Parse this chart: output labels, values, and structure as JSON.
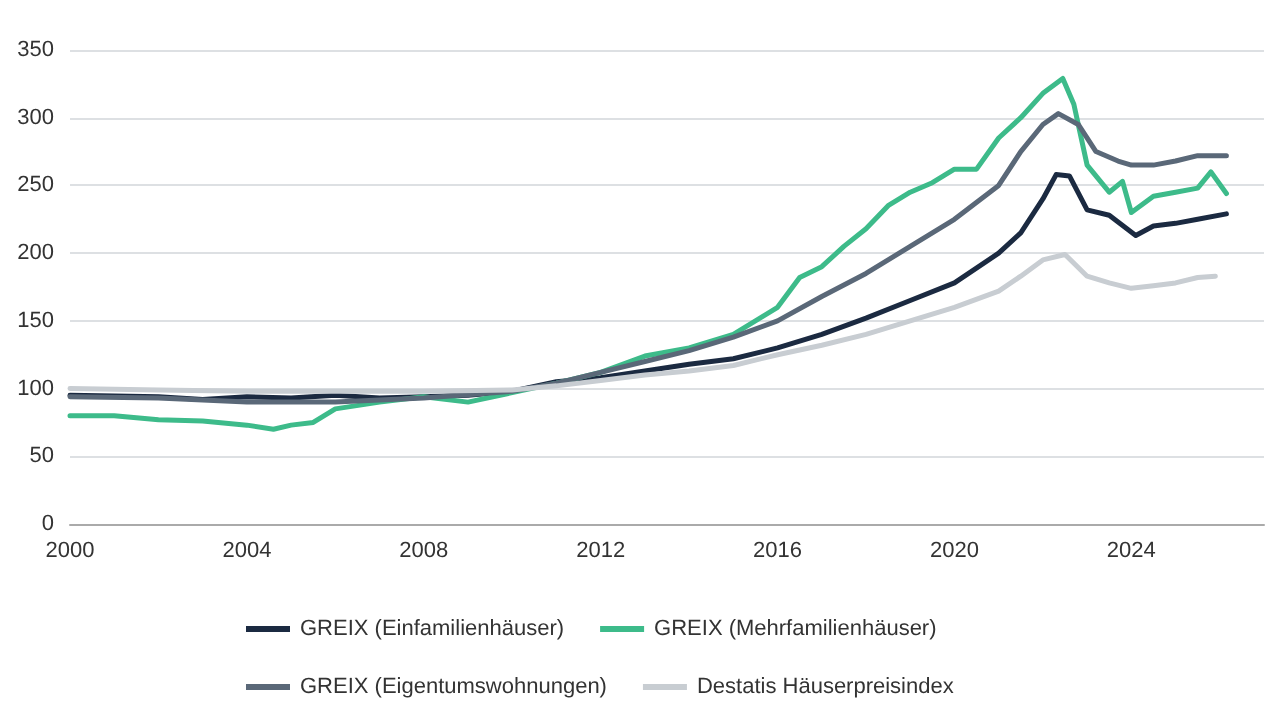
{
  "chart_data": {
    "type": "line",
    "xlim": [
      2000,
      2027
    ],
    "xticks": [
      2000,
      2004,
      2008,
      2012,
      2016,
      2020,
      2024
    ],
    "ylim": [
      0,
      350
    ],
    "yticks": [
      0,
      50,
      100,
      150,
      200,
      250,
      300,
      350
    ],
    "grid": "y",
    "legend": "bottom",
    "marker": "none",
    "line_style": "solid",
    "series": [
      {
        "name": "GREIX (Einfamilienhäuser)",
        "color": "#1b2a41",
        "x": [
          2000,
          2002,
          2003,
          2004,
          2005,
          2006,
          2007,
          2008,
          2009,
          2010,
          2011,
          2012,
          2013,
          2014,
          2015,
          2016,
          2017,
          2018,
          2019,
          2020,
          2021,
          2021.5,
          2022,
          2022.3,
          2022.6,
          2023,
          2023.5,
          2024.1,
          2024.5,
          2025,
          2025.5,
          2026.15
        ],
        "values": [
          95,
          94,
          92,
          94,
          93,
          95,
          93,
          94,
          95,
          98,
          105,
          108,
          113,
          118,
          122,
          130,
          140,
          152,
          165,
          178,
          200,
          215,
          240,
          258,
          257,
          232,
          228,
          213,
          220,
          222,
          225,
          229
        ]
      },
      {
        "name": "GREIX (Mehrfamilienhäuser)",
        "color": "#3dbb8a",
        "x": [
          2000,
          2001,
          2002,
          2003,
          2004,
          2004.6,
          2005,
          2005.5,
          2006,
          2007,
          2008,
          2009,
          2010,
          2011,
          2012,
          2013,
          2014,
          2015,
          2016,
          2016.5,
          2017,
          2017.5,
          2018,
          2018.5,
          2019,
          2019.5,
          2020,
          2020.5,
          2021,
          2021.5,
          2022,
          2022.45,
          2022.7,
          2023,
          2023.5,
          2023.8,
          2024,
          2024.5,
          2025,
          2025.5,
          2025.8,
          2026.15
        ],
        "values": [
          80,
          80,
          77,
          76,
          73,
          70,
          73,
          75,
          85,
          90,
          94,
          90,
          97,
          104,
          112,
          124,
          130,
          140,
          160,
          182,
          190,
          205,
          218,
          235,
          245,
          252,
          262,
          262,
          285,
          300,
          318,
          329,
          310,
          265,
          245,
          253,
          230,
          242,
          245,
          248,
          260,
          244
        ]
      },
      {
        "name": "GREIX (Eigentumswohnungen)",
        "color": "#5a6878",
        "x": [
          2000,
          2002,
          2004,
          2006,
          2008,
          2010,
          2011,
          2012,
          2013,
          2014,
          2015,
          2016,
          2017,
          2018,
          2019,
          2020,
          2021,
          2021.5,
          2022,
          2022.35,
          2022.8,
          2023.2,
          2023.7,
          2024,
          2024.5,
          2025,
          2025.5,
          2026.15
        ],
        "values": [
          94,
          93,
          90,
          90,
          93,
          98,
          104,
          112,
          120,
          128,
          138,
          150,
          168,
          185,
          205,
          225,
          250,
          275,
          295,
          303,
          295,
          275,
          268,
          265,
          265,
          268,
          272,
          272
        ]
      },
      {
        "name": "Destatis Häuserpreisindex",
        "color": "#c8cdd2",
        "x": [
          2000,
          2002,
          2004,
          2006,
          2008,
          2010,
          2011,
          2012,
          2013,
          2014,
          2015,
          2016,
          2017,
          2018,
          2019,
          2020,
          2021,
          2021.5,
          2022,
          2022.5,
          2023,
          2023.5,
          2024,
          2024.5,
          2025,
          2025.5,
          2025.9
        ],
        "values": [
          100,
          99,
          98,
          98,
          98,
          99,
          102,
          106,
          110,
          113,
          117,
          125,
          132,
          140,
          150,
          160,
          172,
          183,
          195,
          199,
          183,
          178,
          174,
          176,
          178,
          182,
          183
        ]
      }
    ]
  }
}
